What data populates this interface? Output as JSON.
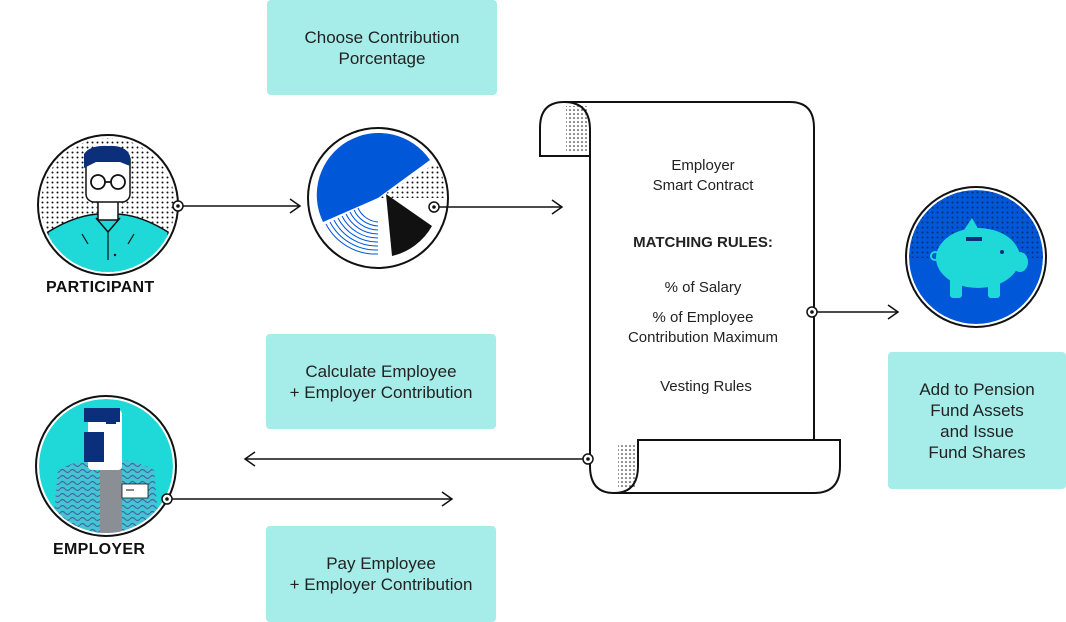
{
  "boxes": {
    "choose": [
      "Choose Contribution",
      "Porcentage"
    ],
    "calculate": [
      "Calculate Employee",
      "+ Employer Contribution"
    ],
    "pay": [
      "Pay Employee",
      "+ Employer Contribution"
    ],
    "pension": [
      "Add to Pension",
      "Fund Assets",
      "and Issue",
      "Fund Shares"
    ]
  },
  "actors": {
    "participant": "PARTICIPANT",
    "employer": "EMPLOYER"
  },
  "contract": {
    "title": [
      "Employer",
      "Smart Contract"
    ],
    "rules_heading": "MATCHING RULES:",
    "rule_salary": "% of Salary",
    "rule_employee": [
      "% of Employee",
      "Contribution Maximum"
    ],
    "rule_vesting": "Vesting Rules"
  },
  "colors": {
    "box_fill": "#a6ece8",
    "teal": "#1fd8d8",
    "blue": "#0057d8",
    "navy": "#0b2f7a",
    "ink": "#111111"
  }
}
